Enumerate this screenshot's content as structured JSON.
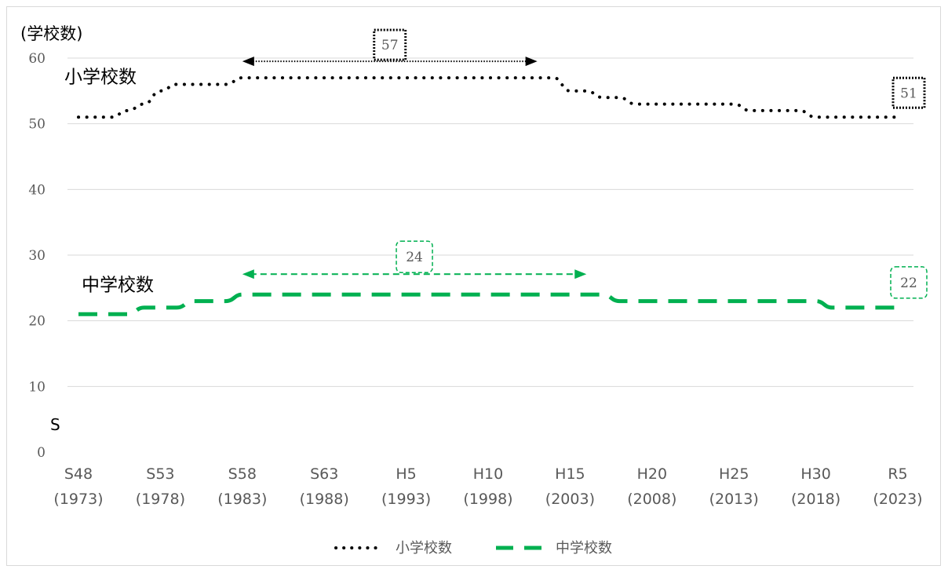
{
  "chart_data": {
    "type": "line",
    "ylabel": "(学校数)",
    "ylim": [
      0,
      60
    ],
    "y_ticks": [
      0,
      10,
      20,
      30,
      40,
      50,
      60
    ],
    "grid": true,
    "legend_position": "bottom",
    "categories": [
      "S48\n(1973)",
      "S49\n(1974)",
      "S50\n(1975)",
      "S51\n(1976)",
      "S52\n(1977)",
      "S53\n(1978)",
      "S54\n(1979)",
      "S55\n(1980)",
      "S56\n(1981)",
      "S57\n(1982)",
      "S58\n(1983)",
      "S59\n(1984)",
      "S60\n(1985)",
      "S61\n(1986)",
      "S62\n(1987)",
      "S63\n(1988)",
      "H1\n(1989)",
      "H2\n(1990)",
      "H3\n(1991)",
      "H4\n(1992)",
      "H5\n(1993)",
      "H6\n(1994)",
      "H7\n(1995)",
      "H8\n(1996)",
      "H9\n(1997)",
      "H10\n(1998)",
      "H11\n(1999)",
      "H12\n(2000)",
      "H13\n(2001)",
      "H14\n(2002)",
      "H15\n(2003)",
      "H16\n(2004)",
      "H17\n(2005)",
      "H18\n(2006)",
      "H19\n(2007)",
      "H20\n(2008)",
      "H21\n(2009)",
      "H22\n(2010)",
      "H23\n(2011)",
      "H24\n(2012)",
      "H25\n(2013)",
      "H26\n(2014)",
      "H27\n(2015)",
      "H28\n(2016)",
      "H29\n(2017)",
      "H30\n(2018)",
      "R1\n(2019)",
      "R2\n(2020)",
      "R3\n(2021)",
      "R4\n(2022)",
      "R5\n(2023)"
    ],
    "x_tick_labels": [
      {
        "index": 0,
        "line1": "S48",
        "line2": "(1973)"
      },
      {
        "index": 5,
        "line1": "S53",
        "line2": "(1978)"
      },
      {
        "index": 10,
        "line1": "S58",
        "line2": "(1983)"
      },
      {
        "index": 15,
        "line1": "S63",
        "line2": "(1988)"
      },
      {
        "index": 20,
        "line1": "H5",
        "line2": "(1993)"
      },
      {
        "index": 25,
        "line1": "H10",
        "line2": "(1998)"
      },
      {
        "index": 30,
        "line1": "H15",
        "line2": "(2003)"
      },
      {
        "index": 35,
        "line1": "H20",
        "line2": "(2008)"
      },
      {
        "index": 40,
        "line1": "H25",
        "line2": "(2013)"
      },
      {
        "index": 45,
        "line1": "H30",
        "line2": "(2018)"
      },
      {
        "index": 50,
        "line1": "R5",
        "line2": "(2023)"
      }
    ],
    "series": [
      {
        "name": "小学校数",
        "color": "#000000",
        "style": "dotted",
        "values": [
          51,
          51,
          51,
          52,
          53,
          55,
          56,
          56,
          56,
          56,
          57,
          57,
          57,
          57,
          57,
          57,
          57,
          57,
          57,
          57,
          57,
          57,
          57,
          57,
          57,
          57,
          57,
          57,
          57,
          57,
          55,
          55,
          54,
          54,
          53,
          53,
          53,
          53,
          53,
          53,
          53,
          52,
          52,
          52,
          52,
          51,
          51,
          51,
          51,
          51,
          51
        ]
      },
      {
        "name": "中学校数",
        "color": "#00b050",
        "style": "dashed",
        "values": [
          21,
          21,
          21,
          21,
          22,
          22,
          22,
          23,
          23,
          23,
          24,
          24,
          24,
          24,
          24,
          24,
          24,
          24,
          24,
          24,
          24,
          24,
          24,
          24,
          24,
          24,
          24,
          24,
          24,
          24,
          24,
          24,
          24,
          23,
          23,
          23,
          23,
          23,
          23,
          23,
          23,
          23,
          23,
          23,
          23,
          23,
          22,
          22,
          22,
          22,
          22
        ]
      }
    ],
    "series_labels": [
      {
        "text": "小学校数",
        "series": 0
      },
      {
        "text": "中学校数",
        "series": 1
      }
    ],
    "annotations": [
      {
        "type": "span-arrow",
        "series": 0,
        "from_index": 10,
        "to_index": 28,
        "value": 57,
        "label": "57",
        "color": "#000000",
        "style": "dotted"
      },
      {
        "type": "end-label",
        "series": 0,
        "index": 50,
        "label": "51",
        "color": "#000000",
        "style": "dotted"
      },
      {
        "type": "span-arrow",
        "series": 1,
        "from_index": 10,
        "to_index": 31,
        "value": 24,
        "label": "24",
        "color": "#00b050",
        "style": "dashed"
      },
      {
        "type": "end-label",
        "series": 1,
        "index": 50,
        "label": "22",
        "color": "#00b050",
        "style": "dashed"
      }
    ],
    "stray_text": "S",
    "legend": [
      {
        "label": "小学校数",
        "series": 0
      },
      {
        "label": "中学校数",
        "series": 1
      }
    ]
  }
}
